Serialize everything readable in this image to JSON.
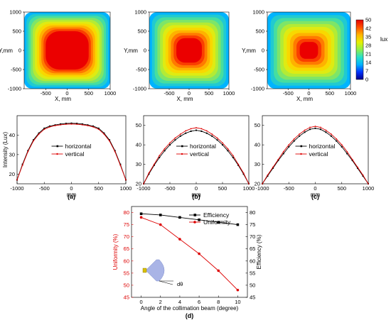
{
  "chart_data": [
    {
      "type": "heatmap",
      "id": "a-map",
      "xlabel": "X, mm",
      "ylabel": "Y,mm",
      "x_ticks": [
        "-500",
        "0",
        "500",
        "1000"
      ],
      "y_ticks": [
        "1000",
        "500",
        "0",
        "-500",
        "-1000"
      ],
      "xlim": [
        -1000,
        1000
      ],
      "ylim": [
        -1000,
        1000
      ],
      "plateau_half_width_mm": 500
    },
    {
      "type": "heatmap",
      "id": "b-map",
      "xlabel": "X, mm",
      "ylabel": "Y,mm",
      "x_ticks": [
        "-500",
        "0",
        "500",
        "1000"
      ],
      "y_ticks": [
        "1000",
        "500",
        "0",
        "-500",
        "-1000"
      ],
      "xlim": [
        -1000,
        1000
      ],
      "ylim": [
        -1000,
        1000
      ],
      "plateau_half_width_mm": 320
    },
    {
      "type": "heatmap",
      "id": "c-map",
      "xlabel": "X, mm",
      "ylabel": "Y,mm",
      "x_ticks": [
        "-500",
        "0",
        "500",
        "1000"
      ],
      "y_ticks": [
        "1000",
        "500",
        "0",
        "-500",
        "-1000"
      ],
      "xlim": [
        -1000,
        1000
      ],
      "ylim": [
        -1000,
        1000
      ],
      "plateau_half_width_mm": 220,
      "colorbar": {
        "unit": "lux",
        "ticks": [
          "50",
          "42",
          "35",
          "28",
          "21",
          "14",
          "7",
          "0"
        ],
        "colors": [
          "#00008b",
          "#0033ff",
          "#00b4ff",
          "#28e0c8",
          "#8ef04a",
          "#e6f000",
          "#ffb400",
          "#ff5000",
          "#e60000"
        ]
      }
    },
    {
      "type": "line",
      "id": "a-line",
      "panel_label": "(a)",
      "xlabel": "mm",
      "ylabel": "Intensity (Lux)",
      "xlim": [
        -1000,
        1000
      ],
      "ylim": [
        15,
        50
      ],
      "x_ticks": [
        "-1000",
        "-500",
        "0",
        "500",
        "1000"
      ],
      "y_ticks": [
        "20",
        "30",
        "40"
      ],
      "y_tick_values": [
        20,
        30,
        40
      ],
      "legend": "center",
      "series": [
        {
          "name": "horizontal",
          "color": "#000000",
          "marker": "square",
          "x": [
            -1000,
            -900,
            -800,
            -700,
            -600,
            -500,
            -400,
            -300,
            -200,
            -100,
            0,
            100,
            200,
            300,
            400,
            500,
            600,
            700,
            800,
            900,
            1000
          ],
          "values": [
            17,
            25,
            32,
            37.5,
            41,
            43.5,
            44.6,
            45.2,
            45.7,
            46.0,
            46.1,
            46.0,
            45.7,
            45.2,
            44.6,
            43.5,
            41,
            37.5,
            32,
            25,
            17
          ]
        },
        {
          "name": "vertical",
          "color": "#dd0000",
          "marker": "circle",
          "x": [
            -1000,
            -900,
            -800,
            -700,
            -600,
            -500,
            -400,
            -300,
            -200,
            -100,
            0,
            100,
            200,
            300,
            400,
            500,
            600,
            700,
            800,
            900,
            1000
          ],
          "values": [
            17,
            24.5,
            31.5,
            37,
            40.5,
            43,
            44.2,
            44.9,
            45.3,
            45.6,
            45.7,
            45.6,
            45.3,
            44.9,
            44.2,
            43,
            40.5,
            37,
            31.5,
            24.5,
            17
          ]
        }
      ]
    },
    {
      "type": "line",
      "id": "b-line",
      "panel_label": "(b)",
      "xlabel": "mm",
      "ylabel": "",
      "xlim": [
        -1000,
        1000
      ],
      "ylim": [
        20,
        55
      ],
      "x_ticks": [
        "-1000",
        "-500",
        "0",
        "500",
        "1000"
      ],
      "y_ticks": [
        "20",
        "30",
        "40",
        "50"
      ],
      "y_tick_values": [
        20,
        30,
        40,
        50
      ],
      "legend": "center",
      "series": [
        {
          "name": "horizontal",
          "color": "#000000",
          "marker": "square",
          "x": [
            -1000,
            -900,
            -800,
            -700,
            -600,
            -500,
            -400,
            -300,
            -200,
            -100,
            0,
            100,
            200,
            300,
            400,
            500,
            600,
            700,
            800,
            900,
            1000
          ],
          "values": [
            20,
            25,
            29.5,
            33.5,
            37,
            40,
            42.5,
            44.5,
            46,
            47,
            47.5,
            47,
            46,
            44.5,
            42.5,
            40,
            37,
            33.5,
            29.5,
            25,
            20
          ]
        },
        {
          "name": "vertical",
          "color": "#dd0000",
          "marker": "circle",
          "x": [
            -1000,
            -900,
            -800,
            -700,
            -600,
            -500,
            -400,
            -300,
            -200,
            -100,
            0,
            100,
            200,
            300,
            400,
            500,
            600,
            700,
            800,
            900,
            1000
          ],
          "values": [
            20,
            25.5,
            30,
            34.5,
            38,
            41,
            43.5,
            45.5,
            47.2,
            48.3,
            48.8,
            48.3,
            47.2,
            45.5,
            43.5,
            41,
            38,
            34.5,
            30,
            25.5,
            20
          ]
        }
      ]
    },
    {
      "type": "line",
      "id": "c-line",
      "panel_label": "(c)",
      "xlabel": "mm",
      "ylabel": "",
      "xlim": [
        -1000,
        1000
      ],
      "ylim": [
        20,
        55
      ],
      "x_ticks": [
        "-1000",
        "-500",
        "0",
        "500",
        "1000"
      ],
      "y_ticks": [
        "20",
        "30",
        "40",
        "50"
      ],
      "y_tick_values": [
        20,
        30,
        40,
        50
      ],
      "legend": "center",
      "series": [
        {
          "name": "horizontal",
          "color": "#000000",
          "marker": "square",
          "x": [
            -1000,
            -900,
            -800,
            -700,
            -600,
            -500,
            -400,
            -300,
            -200,
            -100,
            0,
            100,
            200,
            300,
            400,
            500,
            600,
            700,
            800,
            900,
            1000
          ],
          "values": [
            20,
            24,
            28,
            32,
            35.5,
            39,
            42,
            44.5,
            46.5,
            48,
            48.5,
            48,
            46.5,
            44.5,
            42,
            39,
            35.5,
            32,
            28,
            24,
            20
          ]
        },
        {
          "name": "vertical",
          "color": "#dd0000",
          "marker": "circle",
          "x": [
            -1000,
            -900,
            -800,
            -700,
            -600,
            -500,
            -400,
            -300,
            -200,
            -100,
            0,
            100,
            200,
            300,
            400,
            500,
            600,
            700,
            800,
            900,
            1000
          ],
          "values": [
            20,
            24.5,
            28.5,
            32.5,
            36.5,
            40,
            43,
            45.5,
            47.5,
            49,
            49.5,
            49,
            47.5,
            45.5,
            43,
            40,
            36.5,
            32.5,
            28.5,
            24.5,
            20
          ]
        }
      ]
    },
    {
      "type": "line",
      "id": "d-line",
      "panel_label": "(d)",
      "xlabel": "Angle of the collimation beam (degree)",
      "ylabel": "Uniformity (%)",
      "y2label": "Efficiency (%)",
      "xlim": [
        -1,
        11
      ],
      "ylim": [
        45,
        82.5
      ],
      "y2lim": [
        45,
        82.5
      ],
      "x_ticks": [
        "0",
        "2",
        "4",
        "6",
        "8",
        "10"
      ],
      "x_tick_values": [
        0,
        2,
        4,
        6,
        8,
        10
      ],
      "y_ticks": [
        "45",
        "50",
        "55",
        "60",
        "65",
        "70",
        "75",
        "80"
      ],
      "y_tick_values": [
        45,
        50,
        55,
        60,
        65,
        70,
        75,
        80
      ],
      "y2_ticks": [
        "45",
        "50",
        "55",
        "60",
        "65",
        "70",
        "75",
        "80"
      ],
      "legend": "top-right",
      "inset_label": "dθ",
      "series": [
        {
          "name": "Efficiency",
          "color": "#000000",
          "marker": "square",
          "axis": "right",
          "x": [
            0,
            2,
            4,
            6,
            8,
            10
          ],
          "values": [
            79.5,
            79,
            78,
            77,
            76,
            75
          ]
        },
        {
          "name": "Uniformity",
          "color": "#dd0000",
          "marker": "circle",
          "axis": "left",
          "x": [
            0,
            2,
            4,
            6,
            8,
            10
          ],
          "values": [
            78,
            75,
            69,
            63,
            56,
            48
          ]
        }
      ]
    }
  ]
}
